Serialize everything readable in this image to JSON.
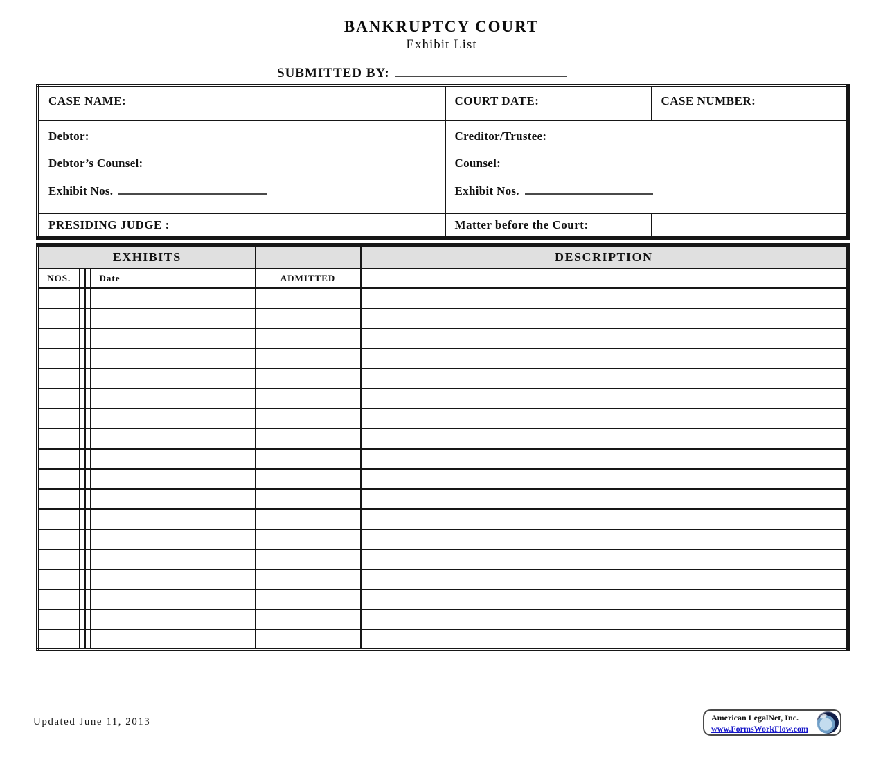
{
  "title": "BANKRUPTCY COURT",
  "subtitle": "Exhibit List",
  "submitted_by_label": "SUBMITTED BY:",
  "header": {
    "case_name_label": "CASE NAME:",
    "court_date_label": "COURT DATE:",
    "case_number_label": "CASE NUMBER:",
    "debtor_label": "Debtor:",
    "debtor_counsel_label": "Debtor’s Counsel:",
    "exhibit_nos_left_label": "Exhibit Nos.",
    "creditor_trustee_label": "Creditor/Trustee:",
    "counsel_label": "Counsel:",
    "exhibit_nos_right_label": "Exhibit Nos.",
    "presiding_judge_label": "PRESIDING JUDGE :",
    "matter_label": "Matter before the Court:"
  },
  "exhibits_table": {
    "exhibits_header": "EXHIBITS",
    "description_header": "DESCRIPTION",
    "nos_header": "NOS.",
    "date_header": "Date",
    "admitted_header": "ADMITTED",
    "row_count": 18
  },
  "footer": {
    "updated_text": "Updated June 11, 2013",
    "brand_name": "American LegalNet, Inc.",
    "brand_url": "www.FormsWorkFlow.com"
  },
  "colors": {
    "section_header_gray": "#e0e0e0",
    "link_blue": "#1414c8",
    "globe_navy": "#101c46",
    "globe_light_blue": "#c3dcef"
  }
}
